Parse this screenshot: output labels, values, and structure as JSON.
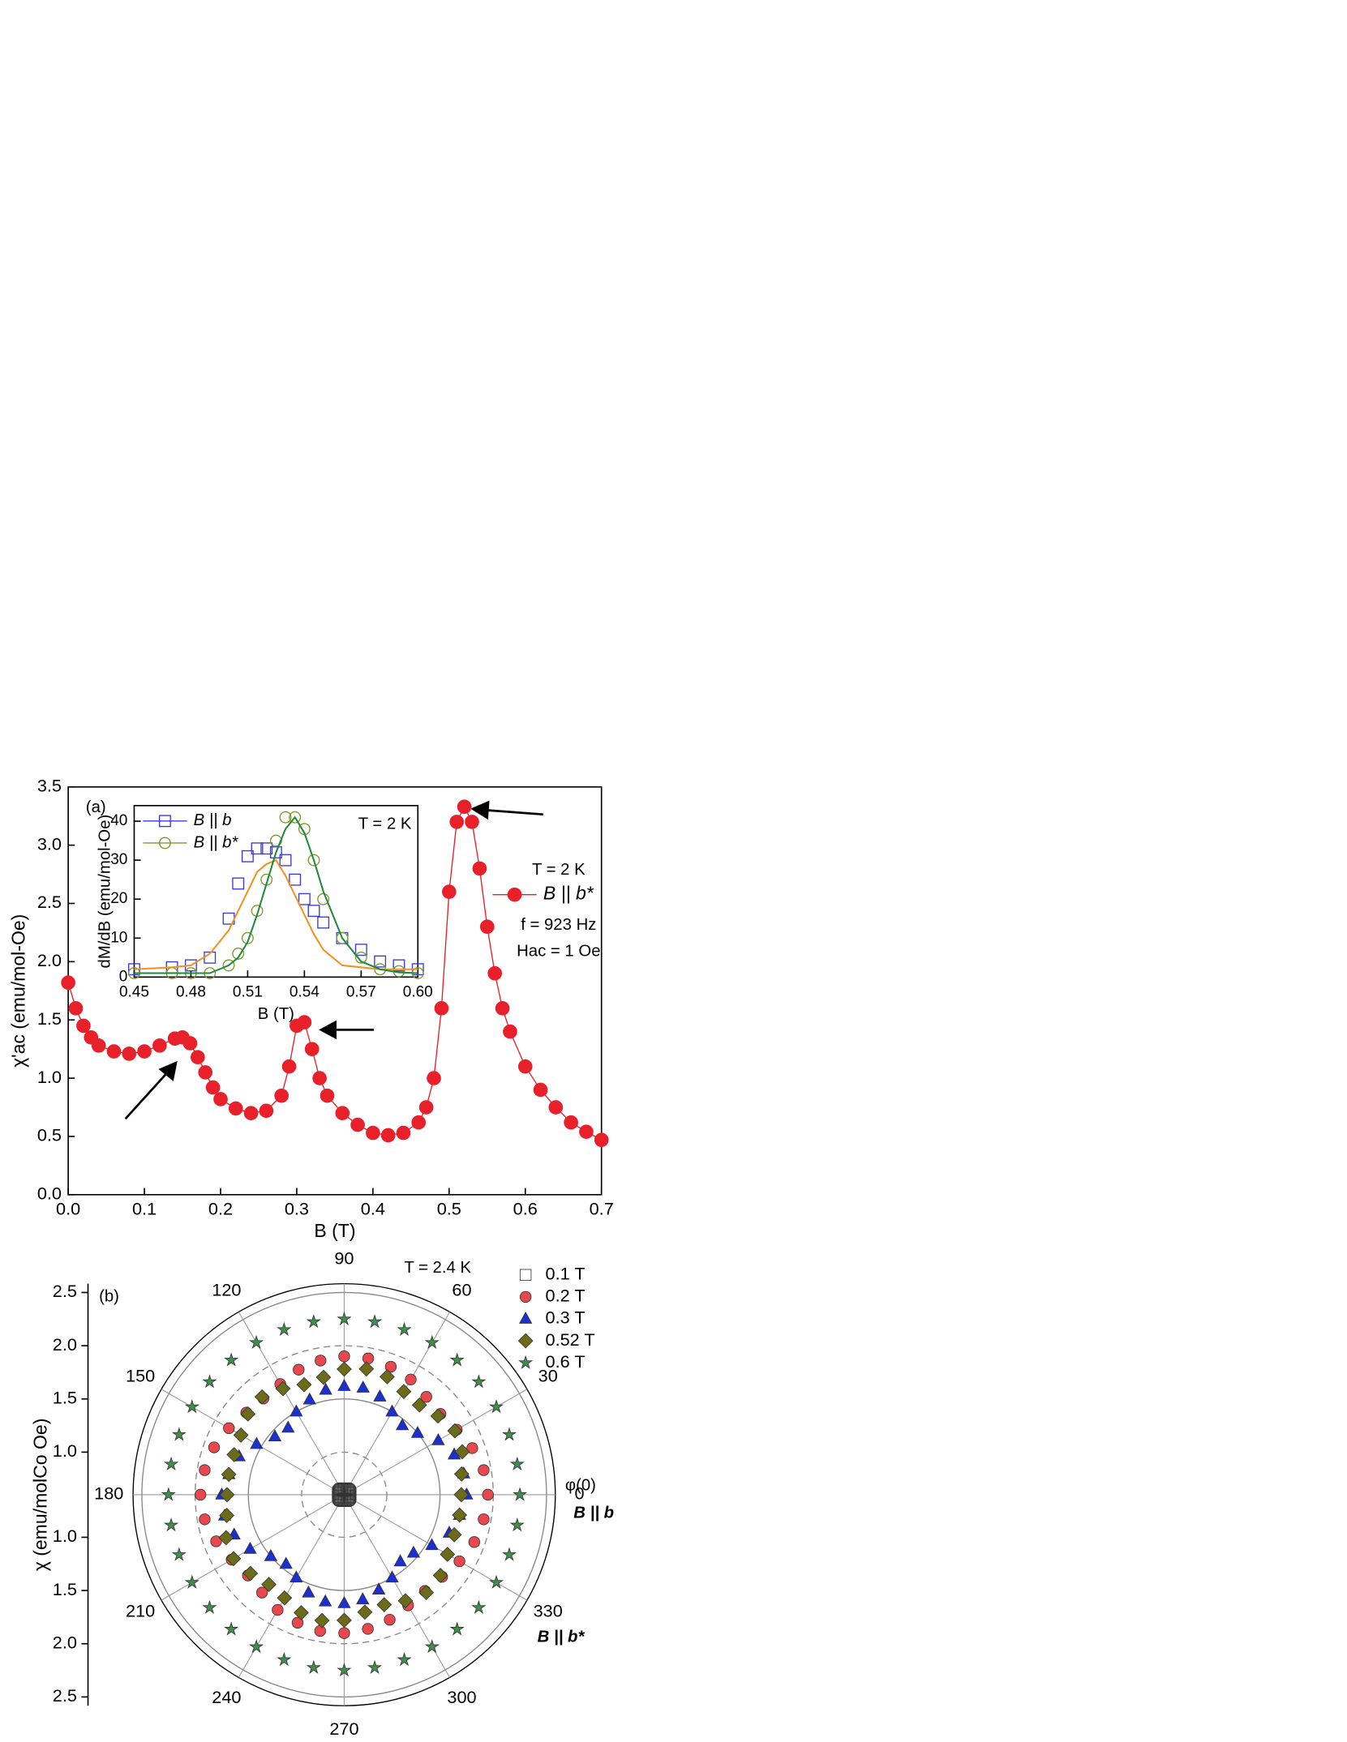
{
  "chart_data": [
    {
      "type": "scatter",
      "xlabel": "B (T)",
      "ylabel": "χ'ac (emu/mol-Oe)",
      "xlim": [
        0,
        0.7
      ],
      "ylim": [
        0,
        3.5
      ],
      "xticks": [
        {
          "value": 0,
          "label": "0.0"
        },
        0.1,
        0.2,
        0.3,
        0.4,
        0.5,
        0.6,
        0.7
      ],
      "yticks": [
        {
          "value": 0,
          "label": "0.0"
        },
        0.5,
        {
          "value": 1,
          "label": "1.0"
        },
        1.5,
        {
          "value": 2,
          "label": "2.0"
        },
        2.5,
        {
          "value": 3,
          "label": "3.0"
        },
        3.5
      ],
      "x": [
        0,
        0.01,
        0.02,
        0.03,
        0.04,
        0.06,
        0.08,
        0.1,
        0.12,
        0.14,
        0.15,
        0.16,
        0.17,
        0.18,
        0.19,
        0.2,
        0.22,
        0.24,
        0.26,
        0.28,
        0.29,
        0.3,
        0.31,
        0.32,
        0.33,
        0.34,
        0.36,
        0.38,
        0.4,
        0.42,
        0.44,
        0.46,
        0.47,
        0.48,
        0.49,
        0.5,
        0.51,
        0.52,
        0.53,
        0.54,
        0.55,
        0.56,
        0.57,
        0.58,
        0.6,
        0.62,
        0.64,
        0.66,
        0.68,
        0.7
      ],
      "series": [
        {
          "name": "B || b*",
          "color": "#e8202a",
          "marker": "circle",
          "line": true,
          "values": [
            1.82,
            1.6,
            1.45,
            1.35,
            1.28,
            1.23,
            1.21,
            1.23,
            1.28,
            1.34,
            1.35,
            1.3,
            1.18,
            1.05,
            0.92,
            0.82,
            0.74,
            0.7,
            0.72,
            0.85,
            1.1,
            1.45,
            1.48,
            1.25,
            1.0,
            0.85,
            0.7,
            0.6,
            0.53,
            0.51,
            0.53,
            0.62,
            0.75,
            1.0,
            1.6,
            2.6,
            3.2,
            3.33,
            3.2,
            2.8,
            2.3,
            1.9,
            1.6,
            1.4,
            1.1,
            0.9,
            0.75,
            0.62,
            0.54,
            0.47
          ]
        }
      ],
      "annotations": [
        "(a)",
        "T = 2 K",
        "f = 923 Hz",
        "Hac = 1 Oe"
      ]
    },
    {
      "type": "scatter",
      "xlabel": "B (T)",
      "ylabel": "dM/dB (emu/mol-Oe)",
      "xlim": [
        0.45,
        0.6
      ],
      "ylim": [
        0,
        44
      ],
      "xticks": [
        0.45,
        0.48,
        0.51,
        0.54,
        0.57,
        {
          "value": 0.6,
          "label": "0.60"
        }
      ],
      "yticks": [
        0,
        10,
        20,
        30,
        40
      ],
      "x": [
        0.45,
        0.47,
        0.48,
        0.49,
        0.5,
        0.505,
        0.51,
        0.515,
        0.52,
        0.525,
        0.53,
        0.535,
        0.54,
        0.545,
        0.55,
        0.56,
        0.57,
        0.58,
        0.59,
        0.6
      ],
      "series": [
        {
          "name": "B || b",
          "color": "#3b3bdc",
          "marker": "square",
          "values": [
            2,
            2.5,
            3,
            5,
            15,
            24,
            31,
            33,
            33,
            32,
            30,
            25,
            20,
            17,
            14,
            10,
            7,
            4,
            3,
            2
          ]
        },
        {
          "name": "B || b*",
          "color": "#7f9a2a",
          "marker": "circle",
          "values": [
            1,
            1,
            1,
            1,
            3,
            6,
            10,
            17,
            25,
            35,
            41,
            41,
            38,
            30,
            20,
            10,
            5,
            2,
            1.5,
            1
          ]
        },
        {
          "color": "#f39220",
          "line": true,
          "values": [
            2,
            2.5,
            3,
            6,
            12,
            17,
            22,
            27,
            29,
            30,
            26,
            21,
            16,
            11,
            7,
            3,
            2.5,
            2,
            2,
            2
          ]
        },
        {
          "color": "#1f8a3a",
          "line": true,
          "values": [
            1,
            1,
            1,
            1,
            3,
            5,
            9,
            16,
            24,
            32,
            38,
            41,
            37,
            30,
            22,
            10,
            4,
            2,
            1.2,
            1
          ]
        }
      ],
      "annotations": [
        "T = 2 K"
      ]
    },
    {
      "type": "polar",
      "ylabel": "χ (emu/molCo Oe)",
      "rlim": [
        0.6,
        2.5
      ],
      "rticks": [
        {
          "value": 1,
          "label": "1.0"
        },
        1.5,
        {
          "value": 2,
          "label": "2.0"
        },
        2.5
      ],
      "thetaticks": [
        0,
        30,
        60,
        90,
        120,
        150,
        180,
        210,
        240,
        270,
        300,
        330
      ],
      "theta": [
        0,
        10,
        20,
        30,
        40,
        50,
        60,
        70,
        80,
        90,
        100,
        110,
        120,
        130,
        140,
        150,
        160,
        170,
        180,
        190,
        200,
        210,
        220,
        230,
        240,
        250,
        260,
        270,
        280,
        290,
        300,
        310,
        320,
        330,
        340,
        350
      ],
      "series": [
        {
          "name": "0.1 T",
          "color": "#555555",
          "marker": "square",
          "values": [
            0.66,
            0.66,
            0.66,
            0.66,
            0.66,
            0.66,
            0.66,
            0.66,
            0.66,
            0.66,
            0.66,
            0.66,
            0.66,
            0.66,
            0.66,
            0.66,
            0.66,
            0.66,
            0.66,
            0.66,
            0.66,
            0.66,
            0.66,
            0.66,
            0.66,
            0.66,
            0.66,
            0.66,
            0.66,
            0.66,
            0.66,
            0.66,
            0.66,
            0.66,
            0.66,
            0.66
          ]
        },
        {
          "name": "0.2 T",
          "color": "#e8474d",
          "marker": "circle",
          "values": [
            1.95,
            1.93,
            1.88,
            1.82,
            1.78,
            1.8,
            1.85,
            1.88,
            1.9,
            1.9,
            1.88,
            1.85,
            1.8,
            1.78,
            1.8,
            1.85,
            1.9,
            1.93,
            1.95,
            1.93,
            1.88,
            1.82,
            1.78,
            1.8,
            1.85,
            1.88,
            1.9,
            1.9,
            1.88,
            1.85,
            1.8,
            1.78,
            1.8,
            1.85,
            1.9,
            1.93
          ]
        },
        {
          "name": "0.3 T",
          "color": "#1c2fd0",
          "marker": "triangle",
          "values": [
            1.75,
            1.74,
            1.7,
            1.62,
            1.5,
            1.45,
            1.5,
            1.58,
            1.62,
            1.62,
            1.6,
            1.55,
            1.5,
            1.42,
            1.45,
            1.55,
            1.65,
            1.7,
            1.75,
            1.74,
            1.7,
            1.62,
            1.5,
            1.45,
            1.5,
            1.58,
            1.62,
            1.62,
            1.6,
            1.55,
            1.5,
            1.42,
            1.45,
            1.55,
            1.65,
            1.7
          ]
        },
        {
          "name": "0.52 T",
          "color": "#6b6b1a",
          "marker": "diamond",
          "values": [
            1.7,
            1.72,
            1.78,
            1.8,
            1.75,
            1.7,
            1.72,
            1.78,
            1.8,
            1.78,
            1.72,
            1.7,
            1.75,
            1.8,
            1.78,
            1.72,
            1.7,
            1.7,
            1.7,
            1.72,
            1.78,
            1.8,
            1.75,
            1.7,
            1.72,
            1.78,
            1.8,
            1.78,
            1.72,
            1.7,
            1.75,
            1.8,
            1.78,
            1.72,
            1.7,
            1.7
          ]
        },
        {
          "name": "0.6 T",
          "color": "#3f8f4a",
          "marker": "star",
          "values": [
            2.25,
            2.25,
            2.25,
            2.25,
            2.25,
            2.25,
            2.25,
            2.25,
            2.25,
            2.25,
            2.25,
            2.25,
            2.25,
            2.25,
            2.25,
            2.25,
            2.25,
            2.25,
            2.25,
            2.25,
            2.25,
            2.25,
            2.25,
            2.25,
            2.25,
            2.25,
            2.25,
            2.25,
            2.25,
            2.25,
            2.25,
            2.25,
            2.25,
            2.25,
            2.25,
            2.25
          ]
        }
      ],
      "annotations": [
        "(b)",
        "T = 2.4 K",
        "φ(0)",
        "B || b",
        "B || b*"
      ]
    }
  ]
}
